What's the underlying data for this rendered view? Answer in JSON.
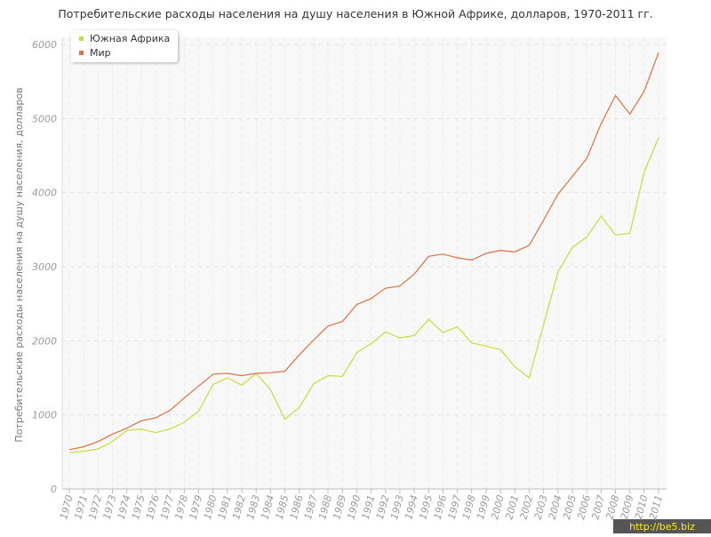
{
  "chart_data": {
    "type": "line",
    "title": "Потребительские расходы населения на душу населения в Южной Африке, долларов, 1970-2011 гг.",
    "y_label": "Потребительские расходы населения на душу населения, долларов",
    "x": [
      1970,
      1971,
      1972,
      1973,
      1974,
      1975,
      1976,
      1977,
      1978,
      1979,
      1980,
      1981,
      1982,
      1983,
      1984,
      1985,
      1986,
      1987,
      1988,
      1989,
      1990,
      1991,
      1992,
      1993,
      1994,
      1995,
      1996,
      1997,
      1998,
      1999,
      2000,
      2001,
      2002,
      2003,
      2004,
      2005,
      2006,
      2007,
      2008,
      2009,
      2010,
      2011
    ],
    "xlim": [
      1970,
      2011
    ],
    "series": [
      {
        "name": "Южная Африка",
        "color": "#c5dd3c",
        "values": [
          490,
          510,
          540,
          640,
          790,
          810,
          760,
          810,
          900,
          1050,
          1410,
          1500,
          1400,
          1560,
          1340,
          940,
          1100,
          1420,
          1530,
          1520,
          1840,
          1960,
          2120,
          2040,
          2070,
          2290,
          2110,
          2190,
          1970,
          1930,
          1880,
          1650,
          1500,
          2220,
          2930,
          3260,
          3400,
          3680,
          3430,
          3450,
          4280,
          4740
        ]
      },
      {
        "name": "Мир",
        "color": "#e07040",
        "values": [
          530,
          570,
          640,
          740,
          820,
          920,
          960,
          1060,
          1230,
          1390,
          1550,
          1560,
          1530,
          1560,
          1570,
          1590,
          1810,
          2010,
          2200,
          2260,
          2490,
          2570,
          2710,
          2740,
          2900,
          3140,
          3170,
          3120,
          3090,
          3180,
          3220,
          3200,
          3290,
          3630,
          3980,
          4220,
          4460,
          4930,
          5310,
          5060,
          5370,
          5890
        ]
      }
    ],
    "ylim": [
      0,
      6000
    ],
    "yticks": [
      0,
      1000,
      2000,
      3000,
      4000,
      5000,
      6000
    ],
    "grid": true,
    "legend": "top-left"
  },
  "watermark": "http://be5.biz"
}
